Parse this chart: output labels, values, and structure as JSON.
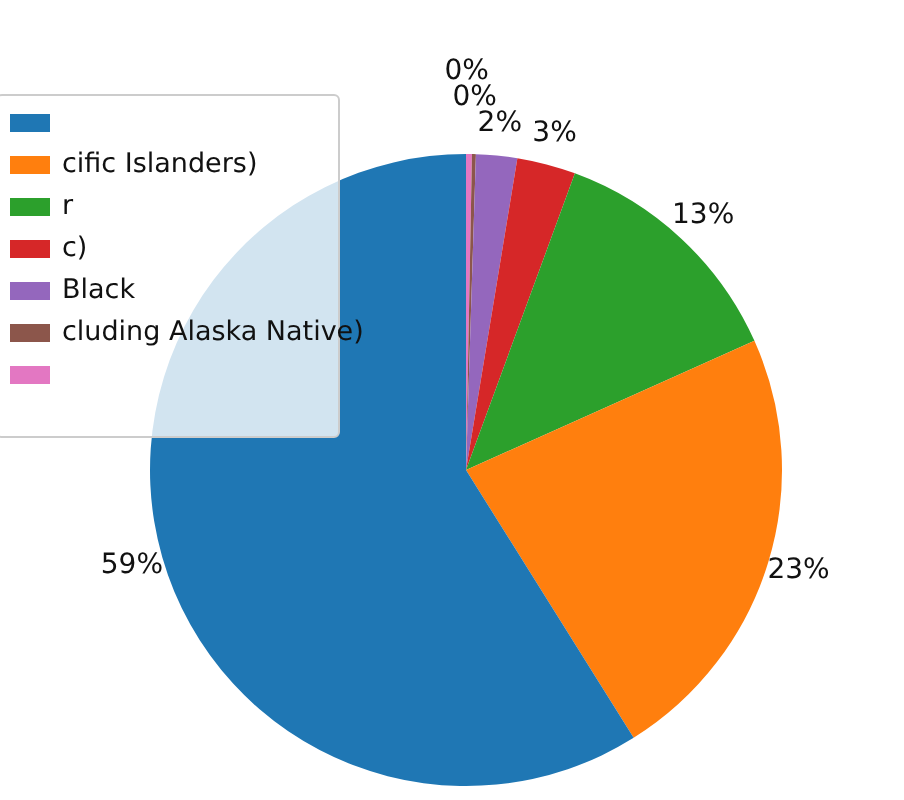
{
  "chart_data": {
    "type": "pie",
    "categories": [
      null,
      "cific Islanders)",
      "r",
      "c)",
      "Black",
      "cluding Alaska Native)",
      null
    ],
    "values": [
      58.9,
      22.8,
      12.7,
      3.0,
      2.1,
      0.2,
      0.3
    ],
    "colors": [
      "#1f77b4",
      "#ff7f0e",
      "#2ca02c",
      "#d62728",
      "#9467bd",
      "#8c564b",
      "#e377c2"
    ],
    "value_labels": [
      "59%",
      "23%",
      "13%",
      "3%",
      "2%",
      "0%",
      "0%"
    ],
    "legend": "top left"
  }
}
